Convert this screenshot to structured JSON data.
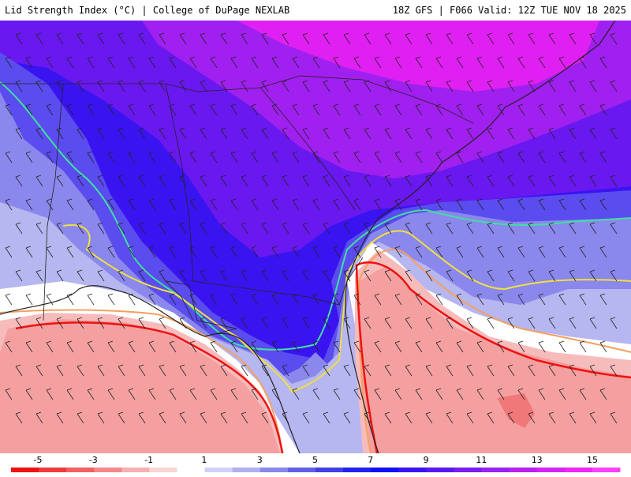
{
  "header": {
    "title": "Lid Strength Index (°C) | College of DuPage NEXLAB",
    "run_info": "18Z GFS | F066 Valid: 12Z TUE NOV 18 2025"
  },
  "colorbar": {
    "labels": [
      "-5",
      "-3",
      "-1",
      "1",
      "3",
      "5",
      "7",
      "9",
      "11",
      "13",
      "15"
    ],
    "colors": [
      "#ee1111",
      "#f03a3a",
      "#f26060",
      "#f48888",
      "#f6b0b0",
      "#f8d6d6",
      "#ffffff",
      "#d0d0f8",
      "#b0b0f0",
      "#8888ec",
      "#6060e6",
      "#4040e6",
      "#2222ee",
      "#1010f8",
      "#3a14f4",
      "#5818f0",
      "#781ef0",
      "#9a22f0",
      "#b822f0",
      "#d424f4",
      "#ee26f6",
      "#ff40ff"
    ]
  },
  "colors": {
    "purple": "#9a1ff0",
    "magenta": "#f020f2",
    "deep_blue": "#3a10f2",
    "blue": "#4830ee",
    "mid_blue": "#6a64ea",
    "light_blue": "#b4b4ee",
    "pale_blue": "#d6d6f6",
    "pink": "#f4a6a6",
    "light_pink": "#f8cccc",
    "red_contour": "#ee1111",
    "orange_contour": "#f4a060",
    "yellow_contour": "#f0e040",
    "teal_contour": "#40e0a0"
  }
}
